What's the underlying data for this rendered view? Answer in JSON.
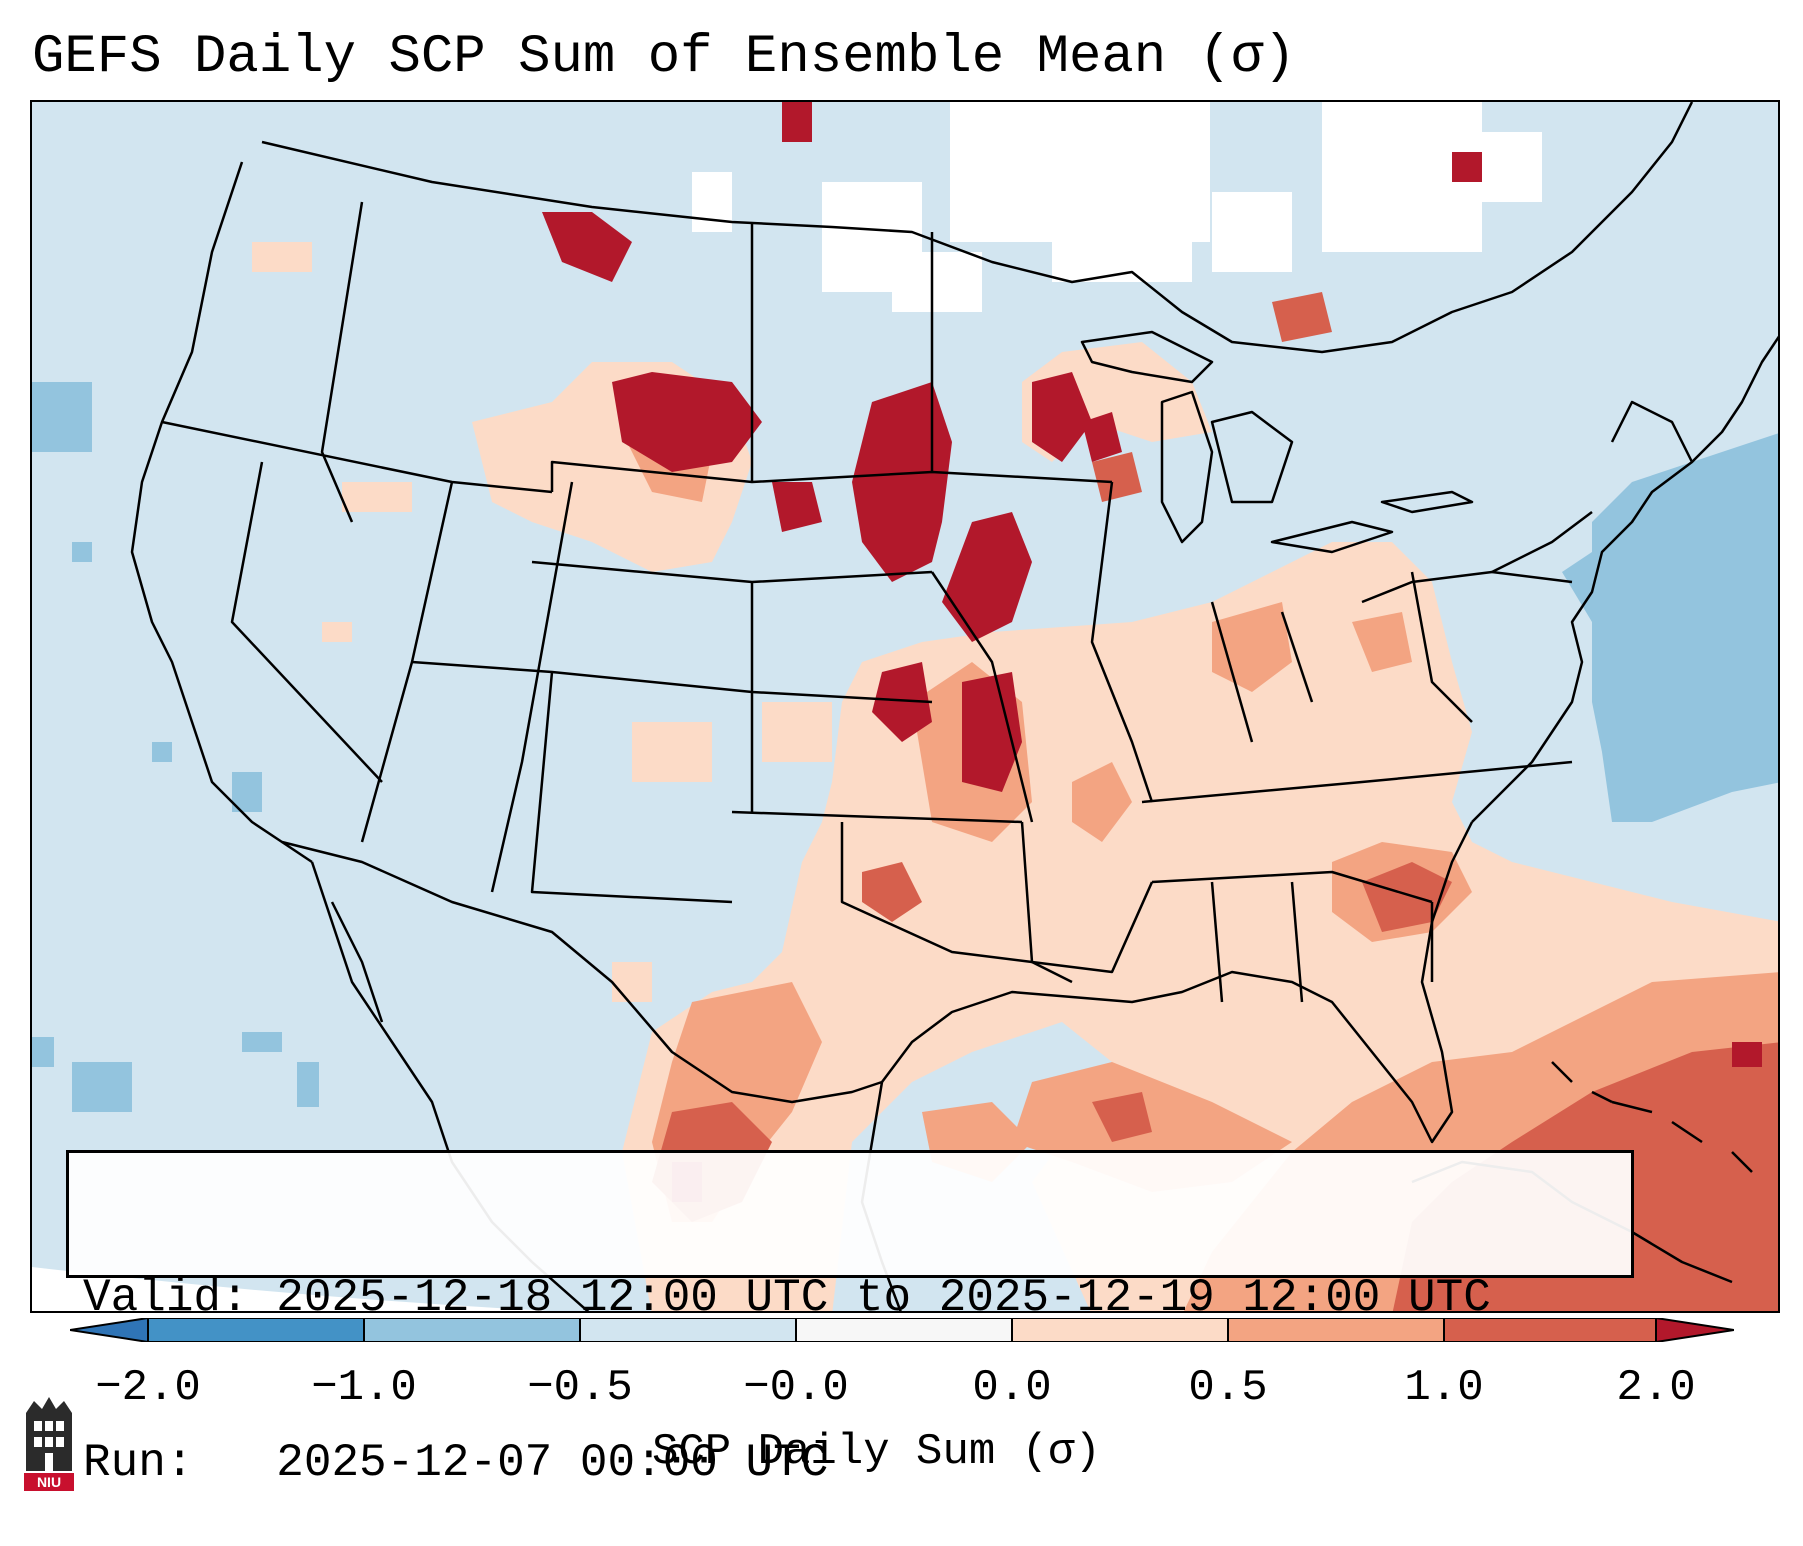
{
  "title": "GEFS Daily SCP Sum of Ensemble Mean (σ)",
  "info": {
    "valid_line": "Valid: 2025-12-18 12:00 UTC to 2025-12-19 12:00 UTC",
    "run_line": "Run:   2025-12-07 00:00 UTC"
  },
  "colorbar": {
    "label": "SCP Daily Sum (σ)",
    "tick_labels": [
      "−2.0",
      "−1.0",
      "−0.5",
      "−0.0",
      "0.0",
      "0.5",
      "1.0",
      "2.0"
    ],
    "bins": [
      {
        "range": "below -2.0",
        "color": "#2f74b6"
      },
      {
        "range": "-2.0 to -1.0",
        "color": "#4392c6"
      },
      {
        "range": "-1.0 to -0.5",
        "color": "#93c4de"
      },
      {
        "range": "-0.5 to 0.0",
        "color": "#d2e5f0"
      },
      {
        "range": "0.0",
        "color": "#f7f7f7"
      },
      {
        "range": "0.0 to 0.5",
        "color": "#fcdbc7"
      },
      {
        "range": "0.5 to 1.0",
        "color": "#f3a482"
      },
      {
        "range": "1.0 to 2.0",
        "color": "#d6604d"
      },
      {
        "range": "above 2.0",
        "color": "#b2182b"
      }
    ]
  },
  "logo": {
    "text": "NIU",
    "name": "Northern Illinois University logo"
  }
}
